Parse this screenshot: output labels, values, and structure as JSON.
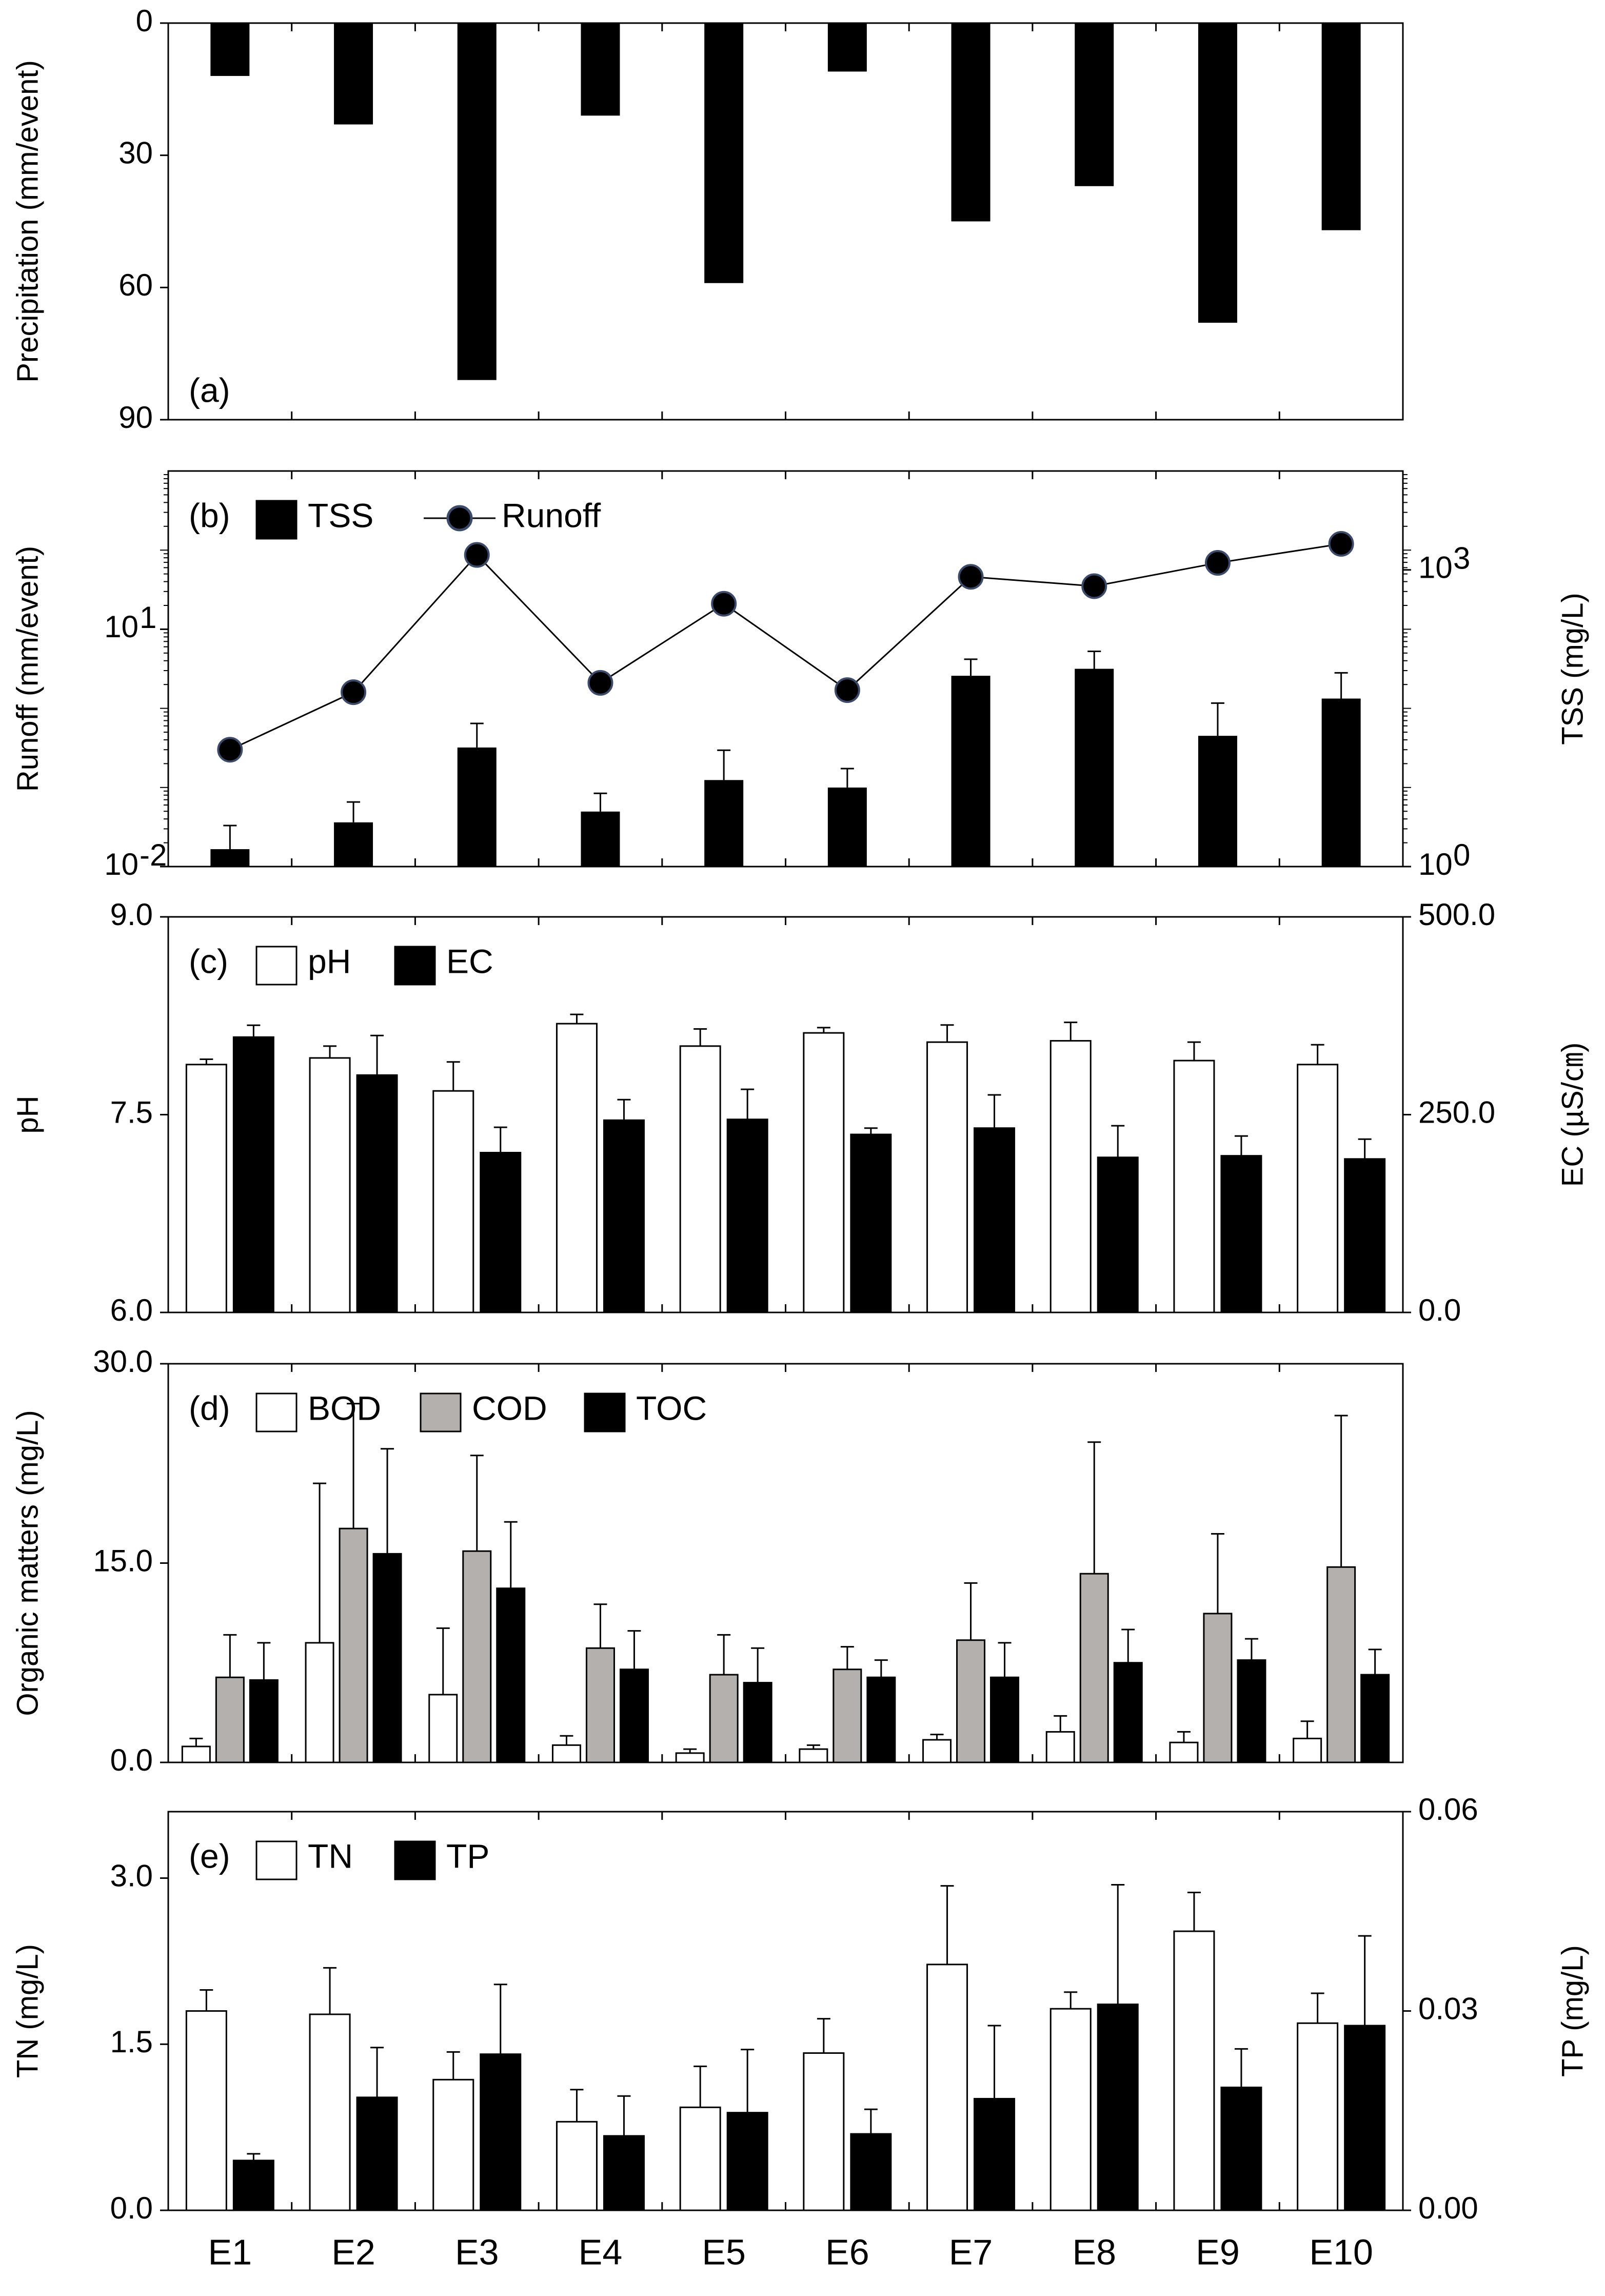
{
  "categories": [
    "E1",
    "E2",
    "E3",
    "E4",
    "E5",
    "E6",
    "E7",
    "E8",
    "E9",
    "E10"
  ],
  "colors": {
    "black": "#000000",
    "white": "#ffffff",
    "gray": "#b3b0ae",
    "marker_edge": "#3c4a6b"
  },
  "chart_data": [
    {
      "panel": "(a)",
      "type": "bar",
      "orientation": "inverted-y",
      "ylabel": "Precipitation (mm/event)",
      "ylim": [
        0,
        90
      ],
      "yticks": [
        "0",
        "30",
        "60",
        "90"
      ],
      "legend": [],
      "series": [
        {
          "name": "Precipitation",
          "color": "#000000",
          "values": [
            12,
            23,
            81,
            21,
            59,
            11,
            45,
            37,
            68,
            47
          ]
        }
      ]
    },
    {
      "panel": "(b)",
      "type": "bar+line",
      "ylabel": "Runoff (mm/event)",
      "ylabel_right": "TSS (mg/L)",
      "yscale": "log",
      "ylim": [
        0.01,
        1000
      ],
      "ylim_right": [
        1,
        10000
      ],
      "yticks": [
        {
          "base": "10",
          "exp": "-2"
        },
        {
          "base": "10",
          "exp": "1"
        }
      ],
      "yticks_right": [
        {
          "base": "10",
          "exp": "0"
        },
        {
          "base": "10",
          "exp": "3"
        }
      ],
      "legend": [
        "TSS",
        "Runoff"
      ],
      "series": [
        {
          "name": "TSS",
          "axis": "right",
          "kind": "bar",
          "color": "#000000",
          "values": [
            1.5,
            2.8,
            16,
            3.6,
            7.5,
            6.3,
            85,
            100,
            21,
            50
          ],
          "errors": [
            1.1,
            1.7,
            12,
            1.9,
            7.5,
            3.5,
            40,
            50,
            24,
            41
          ]
        },
        {
          "name": "Runoff",
          "axis": "left",
          "kind": "line",
          "color": "#000000",
          "values": [
            0.3,
            1.6,
            87,
            2.1,
            21,
            1.7,
            46,
            35,
            69,
            120
          ]
        }
      ]
    },
    {
      "panel": "(c)",
      "type": "bar",
      "ylabel": "pH",
      "ylabel_right": "EC (µS/㎝)",
      "ylim": [
        6.0,
        9.0
      ],
      "ylim_right": [
        0.0,
        500.0
      ],
      "yticks": [
        "6.0",
        "7.5",
        "9.0"
      ],
      "yticks_right": [
        "0.0",
        "250.0",
        "500.0"
      ],
      "legend": [
        "pH",
        "EC"
      ],
      "series": [
        {
          "name": "pH",
          "axis": "left",
          "color": "#ffffff",
          "values": [
            7.88,
            7.93,
            7.68,
            8.19,
            8.02,
            8.12,
            8.05,
            8.06,
            7.91,
            7.88
          ],
          "errors": [
            0.04,
            0.09,
            0.22,
            0.07,
            0.13,
            0.04,
            0.13,
            0.14,
            0.14,
            0.15
          ]
        },
        {
          "name": "EC",
          "axis": "right",
          "color": "#000000",
          "values": [
            348,
            300,
            202,
            243,
            244,
            225,
            233,
            196,
            198,
            194
          ],
          "errors": [
            15,
            50,
            32,
            26,
            38,
            8,
            42,
            40,
            25,
            25
          ]
        }
      ]
    },
    {
      "panel": "(d)",
      "type": "bar",
      "ylabel": "Organic matters (mg/L)",
      "ylim": [
        0.0,
        30.0
      ],
      "yticks": [
        "0.0",
        "15.0",
        "30.0"
      ],
      "legend": [
        "BOD",
        "COD",
        "TOC"
      ],
      "series": [
        {
          "name": "BOD",
          "color": "#ffffff",
          "values": [
            1.2,
            9.0,
            5.1,
            1.3,
            0.7,
            1.0,
            1.7,
            2.3,
            1.5,
            1.8
          ],
          "errors": [
            0.6,
            12.0,
            5.0,
            0.7,
            0.3,
            0.3,
            0.4,
            1.2,
            0.8,
            1.3
          ]
        },
        {
          "name": "COD",
          "color": "#b3b0ae",
          "values": [
            6.4,
            17.6,
            15.9,
            8.6,
            6.6,
            7.0,
            9.2,
            14.2,
            11.2,
            14.7
          ],
          "errors": [
            3.2,
            9.4,
            7.2,
            3.3,
            3.0,
            1.7,
            4.3,
            9.9,
            6.0,
            11.4
          ]
        },
        {
          "name": "TOC",
          "color": "#000000",
          "values": [
            6.2,
            15.7,
            13.1,
            7.0,
            6.0,
            6.4,
            6.4,
            7.5,
            7.7,
            6.6
          ],
          "errors": [
            2.8,
            7.9,
            5.0,
            2.9,
            2.6,
            1.3,
            2.6,
            2.5,
            1.6,
            1.9
          ]
        }
      ]
    },
    {
      "panel": "(e)",
      "type": "bar",
      "ylabel": "TN (mg/L)",
      "ylabel_right": "TP (mg/L)",
      "ylim": [
        0.0,
        3.6
      ],
      "ylim_right": [
        0.0,
        0.06
      ],
      "yticks": [
        "0.0",
        "1.5",
        "3.0"
      ],
      "yticks_right": [
        "0.00",
        "0.03",
        "0.06"
      ],
      "legend": [
        "TN",
        "TP"
      ],
      "series": [
        {
          "name": "TN",
          "axis": "left",
          "color": "#ffffff",
          "values": [
            1.8,
            1.77,
            1.18,
            0.8,
            0.93,
            1.42,
            2.22,
            1.82,
            2.52,
            1.69
          ],
          "errors": [
            0.19,
            0.42,
            0.25,
            0.29,
            0.37,
            0.31,
            0.71,
            0.15,
            0.35,
            0.27
          ]
        },
        {
          "name": "TP",
          "axis": "right",
          "color": "#000000",
          "values": [
            0.0075,
            0.017,
            0.0235,
            0.0112,
            0.0147,
            0.0115,
            0.0168,
            0.031,
            0.0185,
            0.0278
          ],
          "errors": [
            0.001,
            0.0075,
            0.0105,
            0.006,
            0.0095,
            0.0037,
            0.011,
            0.018,
            0.0058,
            0.0135
          ]
        }
      ]
    }
  ]
}
